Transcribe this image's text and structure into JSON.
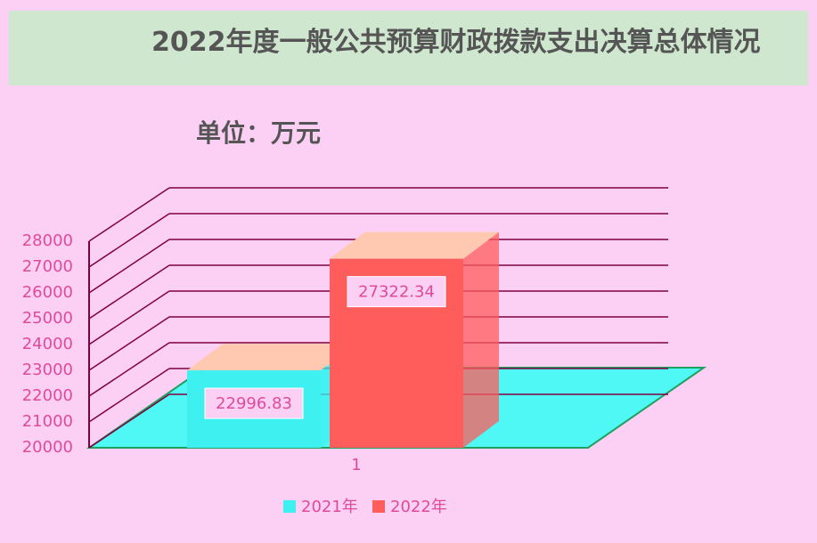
{
  "chart_data": {
    "type": "bar3d",
    "title": "2022年度一般公共预算财政拨款支出决算总体情况",
    "subtitle": "单位：万元",
    "categories": [
      "1"
    ],
    "series": [
      {
        "name": "2021年",
        "color": "#3ff0f0",
        "values": [
          22996.83
        ]
      },
      {
        "name": "2022年",
        "color": "#ff5c5c",
        "values": [
          27322.34
        ]
      }
    ],
    "ylim": [
      20000,
      28000
    ],
    "yticks": [
      20000,
      21000,
      22000,
      23000,
      24000,
      25000,
      26000,
      27000,
      28000
    ],
    "grid": true,
    "legend": "bottom"
  }
}
